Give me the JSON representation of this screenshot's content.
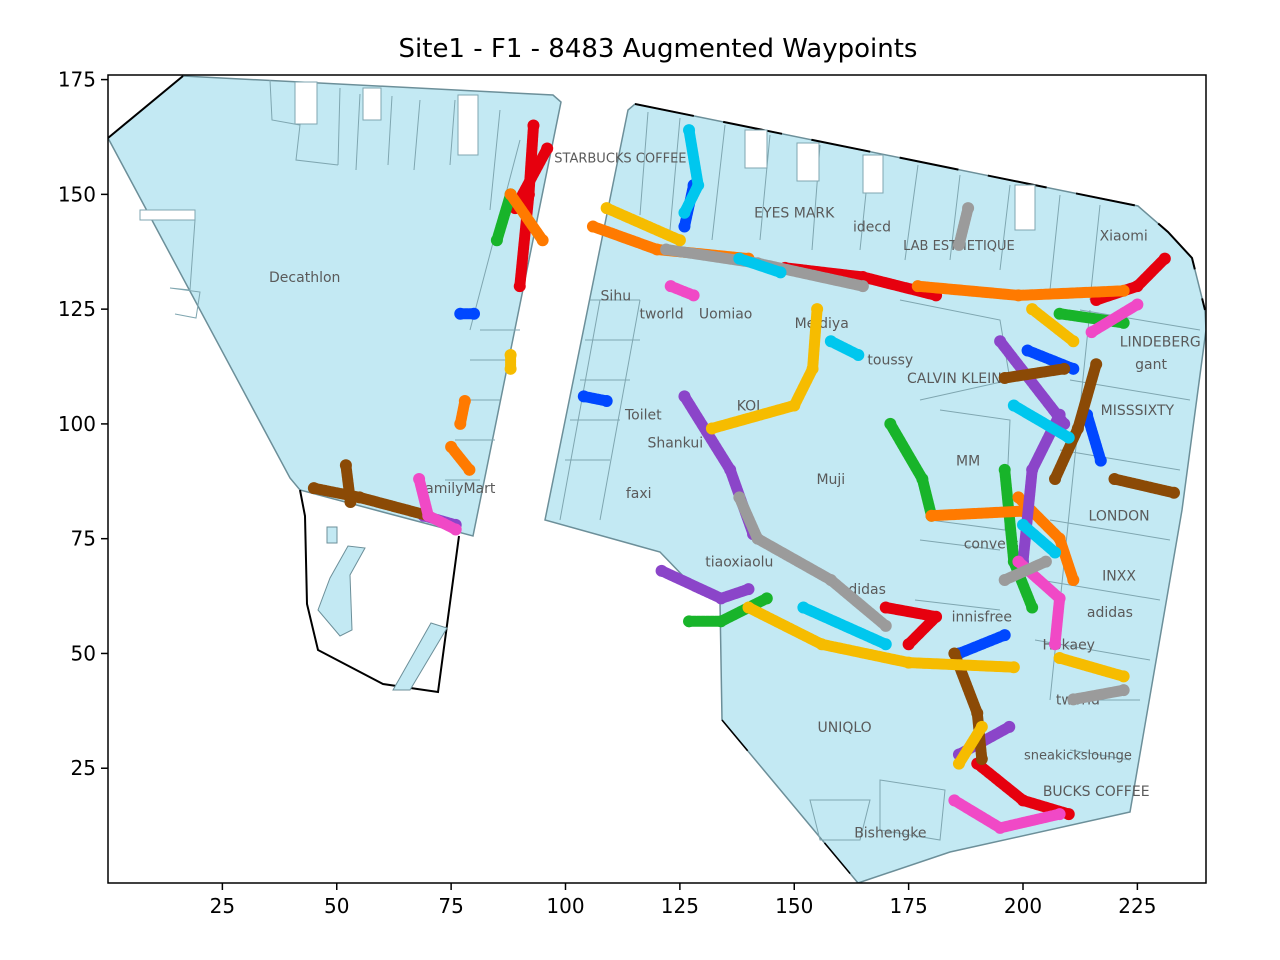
{
  "chart_data": {
    "type": "scatter",
    "title": "Site1 - F1 - 8483 Augmented Waypoints",
    "xlabel": "",
    "ylabel": "",
    "xlim": [
      0,
      240
    ],
    "ylim": [
      0,
      176
    ],
    "xticks": [
      25,
      50,
      75,
      100,
      125,
      150,
      175,
      200,
      225
    ],
    "yticks": [
      25,
      50,
      75,
      100,
      125,
      150,
      175
    ],
    "xtick_labels": [
      "25",
      "50",
      "75",
      "100",
      "125",
      "150",
      "175",
      "200",
      "225"
    ],
    "ytick_labels": [
      "25",
      "50",
      "75",
      "100",
      "125",
      "150",
      "175"
    ],
    "grid": false,
    "floor_color": "#c3e9f3",
    "floor_edge_color": "#6c8f99",
    "store_labels": [
      {
        "text": "Decathlon",
        "x": 43,
        "y": 132
      },
      {
        "text": "STARBUCKS COFFEE",
        "x": 112,
        "y": 158
      },
      {
        "text": "EYES MARK",
        "x": 150,
        "y": 146
      },
      {
        "text": "idecd",
        "x": 167,
        "y": 143
      },
      {
        "text": "LAB ESTHETIQUE",
        "x": 186,
        "y": 139
      },
      {
        "text": "Xiaomi",
        "x": 222,
        "y": 141
      },
      {
        "text": "Sihu",
        "x": 111,
        "y": 128
      },
      {
        "text": "tworld",
        "x": 121,
        "y": 124
      },
      {
        "text": "Uomiao",
        "x": 135,
        "y": 124
      },
      {
        "text": "Meidiya",
        "x": 156,
        "y": 122
      },
      {
        "text": "LINDEBERG",
        "x": 230,
        "y": 118
      },
      {
        "text": "toussy",
        "x": 171,
        "y": 114
      },
      {
        "text": "CALVIN KLEIN",
        "x": 185,
        "y": 110
      },
      {
        "text": "gant",
        "x": 228,
        "y": 113
      },
      {
        "text": "MISSSIXTY",
        "x": 225,
        "y": 103
      },
      {
        "text": "Toilet",
        "x": 117,
        "y": 102
      },
      {
        "text": "KOI",
        "x": 140,
        "y": 104
      },
      {
        "text": "Shankui",
        "x": 124,
        "y": 96
      },
      {
        "text": "MM",
        "x": 188,
        "y": 92
      },
      {
        "text": "Muji",
        "x": 158,
        "y": 88
      },
      {
        "text": "faxi",
        "x": 116,
        "y": 85
      },
      {
        "text": "amilyMart",
        "x": 77,
        "y": 86
      },
      {
        "text": "LONDON",
        "x": 221,
        "y": 80
      },
      {
        "text": "converse",
        "x": 194,
        "y": 74
      },
      {
        "text": "tiaoxiaolu",
        "x": 138,
        "y": 70
      },
      {
        "text": "INXX",
        "x": 221,
        "y": 67
      },
      {
        "text": "adidas",
        "x": 165,
        "y": 64
      },
      {
        "text": "adidas",
        "x": 219,
        "y": 59
      },
      {
        "text": "innisfree",
        "x": 191,
        "y": 58
      },
      {
        "text": "Hokaey",
        "x": 210,
        "y": 52
      },
      {
        "text": "tworld",
        "x": 212,
        "y": 40
      },
      {
        "text": "UNIQLO",
        "x": 161,
        "y": 34
      },
      {
        "text": "sneakickslounge",
        "x": 212,
        "y": 28
      },
      {
        "text": "BUCKS COFFEE",
        "x": 216,
        "y": 20
      },
      {
        "text": "Bishengke",
        "x": 171,
        "y": 11
      }
    ],
    "series": [
      {
        "color": "#e6000e",
        "segments": [
          [
            [
              93,
              165
            ],
            [
              92,
              150
            ],
            [
              90,
              130
            ]
          ],
          [
            [
              231,
              136
            ],
            [
              225,
              130
            ],
            [
              216,
              127
            ]
          ],
          [
            [
              190,
              26
            ],
            [
              200,
              18
            ],
            [
              210,
              15
            ]
          ],
          [
            [
              175,
              52
            ],
            [
              181,
              58
            ],
            [
              170,
              60
            ]
          ],
          [
            [
              148,
              134
            ],
            [
              165,
              132
            ],
            [
              181,
              128
            ]
          ],
          [
            [
              96,
              160
            ],
            [
              89,
              147
            ]
          ]
        ]
      },
      {
        "color": "#0047ff",
        "segments": [
          [
            [
              77,
              124
            ],
            [
              80,
              124
            ]
          ],
          [
            [
              104,
              106
            ],
            [
              109,
              105
            ]
          ],
          [
            [
              214,
              102
            ],
            [
              217,
              92
            ]
          ],
          [
            [
              196,
              54
            ],
            [
              186,
              50
            ]
          ],
          [
            [
              128,
              152
            ],
            [
              126,
              143
            ]
          ],
          [
            [
              201,
              116
            ],
            [
              211,
              112
            ]
          ]
        ]
      },
      {
        "color": "#18b42a",
        "segments": [
          [
            [
              88,
              150
            ],
            [
              85,
              140
            ]
          ],
          [
            [
              171,
              100
            ],
            [
              178,
              88
            ],
            [
              180,
              80
            ]
          ],
          [
            [
              144,
              62
            ],
            [
              134,
              57
            ],
            [
              127,
              57
            ]
          ],
          [
            [
              196,
              90
            ],
            [
              198,
              70
            ],
            [
              202,
              60
            ]
          ],
          [
            [
              208,
              124
            ],
            [
              222,
              122
            ]
          ]
        ]
      },
      {
        "color": "#ff7a00",
        "segments": [
          [
            [
              88,
              150
            ],
            [
              95,
              140
            ]
          ],
          [
            [
              77,
              100
            ],
            [
              78,
              105
            ]
          ],
          [
            [
              75,
              95
            ],
            [
              79,
              90
            ]
          ],
          [
            [
              106,
              143
            ],
            [
              120,
              138
            ],
            [
              140,
              136
            ]
          ],
          [
            [
              177,
              130
            ],
            [
              199,
              128
            ],
            [
              222,
              129
            ]
          ],
          [
            [
              199,
              84
            ],
            [
              208,
              75
            ],
            [
              211,
              66
            ]
          ],
          [
            [
              180,
              80
            ],
            [
              200,
              81
            ]
          ]
        ]
      },
      {
        "color": "#8b45c9",
        "segments": [
          [
            [
              126,
              106
            ],
            [
              136,
              90
            ],
            [
              141,
              76
            ]
          ],
          [
            [
              208,
              102
            ],
            [
              202,
              90
            ],
            [
              200,
              70
            ]
          ],
          [
            [
              121,
              68
            ],
            [
              134,
              62
            ],
            [
              140,
              64
            ]
          ],
          [
            [
              69,
              80
            ],
            [
              76,
              78
            ]
          ],
          [
            [
              195,
              118
            ],
            [
              209,
              100
            ]
          ],
          [
            [
              197,
              34
            ],
            [
              186,
              28
            ]
          ]
        ]
      },
      {
        "color": "#8b4a06",
        "segments": [
          [
            [
              45,
              86
            ],
            [
              55,
              84
            ],
            [
              70,
              80
            ]
          ],
          [
            [
              52,
              91
            ],
            [
              53,
              83
            ]
          ],
          [
            [
              216,
              113
            ],
            [
              212,
              99
            ],
            [
              207,
              88
            ]
          ],
          [
            [
              185,
              50
            ],
            [
              190,
              37
            ],
            [
              191,
              27
            ]
          ],
          [
            [
              233,
              85
            ],
            [
              220,
              88
            ]
          ],
          [
            [
              209,
              112
            ],
            [
              196,
              110
            ]
          ]
        ]
      },
      {
        "color": "#f049c6",
        "segments": [
          [
            [
              68,
              88
            ],
            [
              70,
              80
            ],
            [
              76,
              77
            ]
          ],
          [
            [
              185,
              18
            ],
            [
              195,
              12
            ],
            [
              208,
              15
            ]
          ],
          [
            [
              123,
              130
            ],
            [
              128,
              128
            ]
          ],
          [
            [
              199,
              70
            ],
            [
              208,
              62
            ],
            [
              207,
              52
            ]
          ],
          [
            [
              225,
              126
            ],
            [
              215,
              120
            ]
          ]
        ]
      },
      {
        "color": "#9b9b9b",
        "segments": [
          [
            [
              122,
              138
            ],
            [
              142,
              135
            ],
            [
              165,
              130
            ]
          ],
          [
            [
              138,
              84
            ],
            [
              142,
              75
            ],
            [
              158,
              66
            ],
            [
              170,
              56
            ]
          ],
          [
            [
              188,
              147
            ],
            [
              186,
              139
            ]
          ],
          [
            [
              211,
              40
            ],
            [
              222,
              42
            ]
          ],
          [
            [
              196,
              66
            ],
            [
              205,
              70
            ]
          ]
        ]
      },
      {
        "color": "#f6bc00",
        "segments": [
          [
            [
              132,
              99
            ],
            [
              150,
              104
            ],
            [
              154,
              112
            ],
            [
              155,
              125
            ]
          ],
          [
            [
              88,
              115
            ],
            [
              88,
              112
            ]
          ],
          [
            [
              109,
              147
            ],
            [
              125,
              140
            ]
          ],
          [
            [
              140,
              60
            ],
            [
              156,
              52
            ],
            [
              175,
              48
            ],
            [
              198,
              47
            ]
          ],
          [
            [
              186,
              26
            ],
            [
              191,
              34
            ]
          ],
          [
            [
              208,
              49
            ],
            [
              222,
              45
            ]
          ],
          [
            [
              202,
              125
            ],
            [
              211,
              118
            ]
          ]
        ]
      },
      {
        "color": "#00c7ee",
        "segments": [
          [
            [
              127,
              164
            ],
            [
              129,
              152
            ],
            [
              126,
              146
            ]
          ],
          [
            [
              158,
              118
            ],
            [
              164,
              115
            ]
          ],
          [
            [
              138,
              136
            ],
            [
              147,
              133
            ]
          ],
          [
            [
              200,
              78
            ],
            [
              207,
              72
            ]
          ],
          [
            [
              152,
              60
            ],
            [
              170,
              52
            ]
          ],
          [
            [
              198,
              104
            ],
            [
              210,
              97
            ]
          ]
        ]
      }
    ]
  }
}
